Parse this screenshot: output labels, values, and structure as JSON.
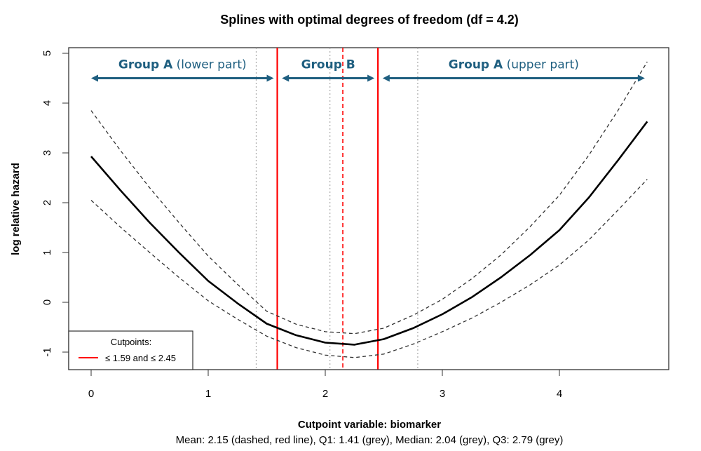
{
  "chart_data": {
    "type": "line",
    "title": "Splines with optimal degrees of freedom (df = 4.2)",
    "xlabel": "Cutpoint variable:  biomarker",
    "subtitle": "Mean: 2.15 (dashed, red line),  Q1: 1.41 (grey),  Median: 2.04 (grey),  Q3: 2.79 (grey)",
    "ylabel": "log relative hazard",
    "xlim": [
      -0.2,
      4.95
    ],
    "ylim": [
      -1.35,
      5.15
    ],
    "xticks": [
      "0",
      "1",
      "2",
      "3",
      "4"
    ],
    "yticks": [
      "-1",
      "0",
      "1",
      "2",
      "3",
      "4",
      "5"
    ],
    "grid": false,
    "x": [
      0,
      0.25,
      0.5,
      0.75,
      1,
      1.25,
      1.5,
      1.75,
      2,
      2.25,
      2.5,
      2.75,
      3,
      3.25,
      3.5,
      3.75,
      4,
      4.25,
      4.5,
      4.75
    ],
    "series": [
      {
        "style": "solid",
        "color": "#000000",
        "values": [
          2.93,
          2.25,
          1.6,
          1.0,
          0.43,
          -0.02,
          -0.43,
          -0.66,
          -0.81,
          -0.85,
          -0.74,
          -0.52,
          -0.24,
          0.1,
          0.5,
          0.95,
          1.45,
          2.1,
          2.85,
          3.63
        ]
      },
      {
        "style": "dashed",
        "color": "#333333",
        "values": [
          3.85,
          3.05,
          2.3,
          1.6,
          0.93,
          0.36,
          -0.18,
          -0.44,
          -0.59,
          -0.63,
          -0.52,
          -0.26,
          0.06,
          0.47,
          0.95,
          1.52,
          2.15,
          2.95,
          3.85,
          4.83
        ]
      },
      {
        "style": "dashed",
        "color": "#333333",
        "values": [
          2.05,
          1.51,
          1.0,
          0.5,
          0.03,
          -0.34,
          -0.68,
          -0.91,
          -1.06,
          -1.11,
          -1.04,
          -0.84,
          -0.59,
          -0.32,
          0.0,
          0.35,
          0.75,
          1.25,
          1.85,
          2.47
        ]
      }
    ],
    "vlines": [
      {
        "x": 1.41,
        "style": "dotted",
        "color": "#aaaaaa"
      },
      {
        "x": 2.04,
        "style": "dotted",
        "color": "#aaaaaa"
      },
      {
        "x": 2.79,
        "style": "dotted",
        "color": "#aaaaaa"
      },
      {
        "x": 2.15,
        "style": "dashed",
        "color": "#ff0000"
      },
      {
        "x": 1.59,
        "style": "solid",
        "color": "#ff0000"
      },
      {
        "x": 2.45,
        "style": "solid",
        "color": "#ff0000"
      }
    ],
    "groups": [
      {
        "bold": "Group A",
        "rest": " (lower part)",
        "from": 0,
        "to": 1.56
      },
      {
        "bold": "Group B",
        "rest": "",
        "from": 1.63,
        "to": 2.42
      },
      {
        "bold": "Group A",
        "rest": " (upper part)",
        "from": 2.49,
        "to": 4.73
      }
    ],
    "group_arrow_y": 4.5,
    "group_color": "#1f5f80",
    "legend": {
      "title": "Cutpoints:",
      "label": "≤ 1.59 and ≤ 2.45",
      "color": "#ff0000",
      "position": "bottom-left"
    }
  }
}
